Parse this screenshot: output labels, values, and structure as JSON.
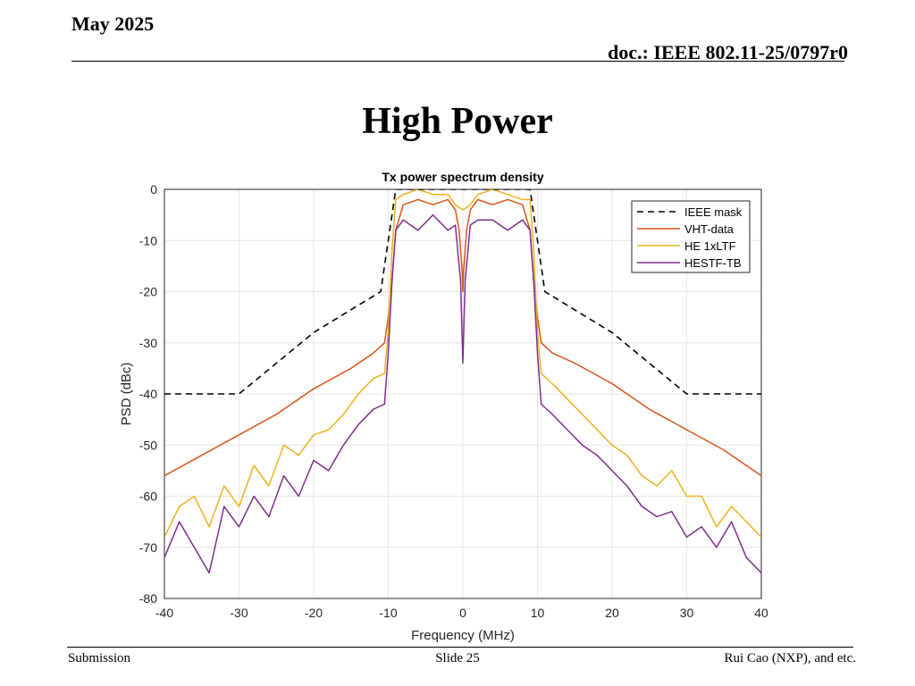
{
  "header": {
    "date": "May 2025",
    "doc": "doc.: IEEE 802.11-25/0797r0"
  },
  "slide": {
    "title": "High Power"
  },
  "footer": {
    "left": "Submission",
    "center": "Slide 25",
    "right": "Rui Cao (NXP), and etc."
  },
  "colors": {
    "mask": "#000000",
    "vht": "#d95319",
    "he": "#edb120",
    "hestf": "#7e2f8e",
    "grid": "#e6e6e6",
    "axis": "#262626"
  },
  "chart_data": {
    "type": "line",
    "title": "Tx power spectrum density",
    "xlabel": "Frequency (MHz)",
    "ylabel": "PSD (dBc)",
    "xlim": [
      -40,
      40
    ],
    "ylim": [
      -80,
      0
    ],
    "xticks": [
      -40,
      -30,
      -20,
      -10,
      0,
      10,
      20,
      30,
      40
    ],
    "yticks": [
      0,
      -10,
      -20,
      -30,
      -40,
      -50,
      -60,
      -70,
      -80
    ],
    "grid": true,
    "legend_position": "top-right",
    "series": [
      {
        "name": "IEEE mask",
        "style": "dashed",
        "color": "#000000",
        "x": [
          -40,
          -30,
          -20,
          -11,
          -9,
          9,
          11,
          20,
          30,
          40
        ],
        "y": [
          -40,
          -40,
          -28,
          -20,
          0,
          0,
          -20,
          -28,
          -40,
          -40
        ]
      },
      {
        "name": "VHT-data",
        "style": "solid",
        "color": "#d95319",
        "x": [
          -40,
          -35,
          -30,
          -25,
          -20,
          -15,
          -12,
          -10.5,
          -10,
          -9.5,
          -9,
          -8,
          -6,
          -4,
          -2,
          -1,
          -0.5,
          -0.1,
          0,
          0.1,
          0.5,
          1,
          2,
          4,
          6,
          8,
          9,
          9.5,
          10,
          10.5,
          12,
          15,
          20,
          25,
          30,
          35,
          40
        ],
        "y": [
          -56,
          -52,
          -48,
          -44,
          -39,
          -35,
          -32,
          -30,
          -25,
          -18,
          -8,
          -3,
          -2,
          -3,
          -2,
          -4,
          -8,
          -16,
          -20,
          -16,
          -8,
          -4,
          -2,
          -3,
          -2,
          -3,
          -8,
          -18,
          -25,
          -30,
          -32,
          -34,
          -38,
          -43,
          -47,
          -51,
          -56
        ]
      },
      {
        "name": "HE 1xLTF",
        "style": "solid",
        "color": "#edb120",
        "x": [
          -40,
          -38,
          -36,
          -34,
          -32,
          -30,
          -28,
          -26,
          -24,
          -22,
          -20,
          -18,
          -16,
          -14,
          -12,
          -10.5,
          -10,
          -9.5,
          -9,
          -8,
          -6,
          -4,
          -2,
          -1,
          0,
          1,
          2,
          4,
          6,
          8,
          9,
          9.5,
          10,
          10.5,
          12,
          14,
          16,
          18,
          20,
          22,
          24,
          26,
          28,
          30,
          32,
          34,
          36,
          38,
          40
        ],
        "y": [
          -68,
          -62,
          -60,
          -66,
          -58,
          -62,
          -54,
          -58,
          -50,
          -52,
          -48,
          -47,
          -44,
          -40,
          -37,
          -36,
          -28,
          -12,
          -2,
          -1,
          0,
          -1,
          -1,
          -3,
          -4,
          -3,
          -1,
          0,
          -1,
          -2,
          -2,
          -12,
          -28,
          -36,
          -38,
          -41,
          -44,
          -47,
          -50,
          -52,
          -56,
          -58,
          -55,
          -60,
          -60,
          -66,
          -62,
          -65,
          -68
        ]
      },
      {
        "name": "HESTF-TB",
        "style": "solid",
        "color": "#7e2f8e",
        "x": [
          -40,
          -38,
          -36,
          -34,
          -32,
          -30,
          -28,
          -26,
          -24,
          -22,
          -20,
          -18,
          -16,
          -14,
          -12,
          -10.5,
          -10,
          -9.5,
          -9,
          -8,
          -6,
          -4,
          -2,
          -1,
          -0.3,
          0,
          0.3,
          1,
          2,
          4,
          6,
          8,
          9,
          9.5,
          10,
          10.5,
          12,
          14,
          16,
          18,
          20,
          22,
          24,
          26,
          28,
          30,
          32,
          34,
          36,
          38,
          40
        ],
        "y": [
          -72,
          -65,
          -70,
          -75,
          -62,
          -66,
          -60,
          -64,
          -56,
          -60,
          -53,
          -55,
          -50,
          -46,
          -43,
          -42,
          -32,
          -18,
          -8,
          -6,
          -8,
          -5,
          -8,
          -7,
          -18,
          -34,
          -18,
          -7,
          -6,
          -6,
          -8,
          -6,
          -8,
          -18,
          -32,
          -42,
          -44,
          -47,
          -50,
          -52,
          -55,
          -58,
          -62,
          -64,
          -63,
          -68,
          -66,
          -70,
          -65,
          -72,
          -75
        ]
      }
    ]
  }
}
